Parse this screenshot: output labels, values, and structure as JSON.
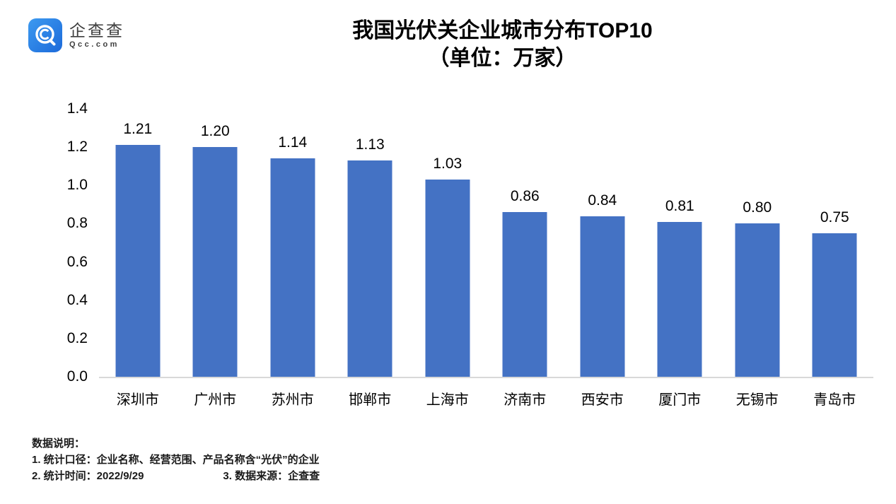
{
  "logo": {
    "name": "企查查",
    "domain": "Qcc.com"
  },
  "title": {
    "line1": "我国光伏关企业城市分布TOP10",
    "line2": "（单位：万家）"
  },
  "chart_data": {
    "type": "bar",
    "title": "我国光伏关企业城市分布TOP10（单位：万家）",
    "categories": [
      "深圳市",
      "广州市",
      "苏州市",
      "邯郸市",
      "上海市",
      "济南市",
      "西安市",
      "厦门市",
      "无锡市",
      "青岛市"
    ],
    "values": [
      1.21,
      1.2,
      1.14,
      1.13,
      1.03,
      0.86,
      0.84,
      0.81,
      0.8,
      0.75
    ],
    "value_labels": [
      "1.21",
      "1.20",
      "1.14",
      "1.13",
      "1.03",
      "0.86",
      "0.84",
      "0.81",
      "0.80",
      "0.75"
    ],
    "xlabel": "",
    "ylabel": "",
    "ylim": [
      0,
      1.4
    ],
    "yticks": [
      "0.0",
      "0.2",
      "0.4",
      "0.6",
      "0.8",
      "1.0",
      "1.2",
      "1.4"
    ],
    "bar_color": "#4472C4",
    "baseline_color": "#d9d9d9",
    "grid": false,
    "legend": "none"
  },
  "footer": {
    "heading": "数据说明：",
    "note1": "1. 统计口径：企业名称、经营范围、产品名称含“光伏”的企业",
    "note2": "2. 统计时间：2022/9/29",
    "note3": "3. 数据来源：企查查"
  },
  "colors": {
    "logo_blue_light": "#3d9af0",
    "logo_blue_dark": "#1c6ada",
    "text_dark": "#3d3d3d"
  }
}
